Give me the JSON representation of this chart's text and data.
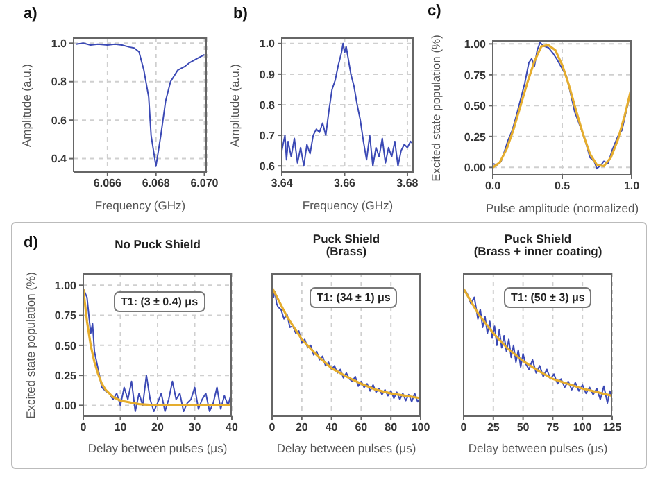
{
  "chart_data": [
    {
      "type": "line",
      "xlabel": "Frequency (GHz)",
      "ylabel": "Amplitude (a.u.)",
      "annotations": [
        "a)"
      ],
      "xlim": [
        6.0646,
        6.0701
      ],
      "xticks": [
        6.066,
        6.068,
        {
          "value": 6.07,
          "label": "6.070"
        }
      ],
      "ylim": [
        0.33,
        1.03
      ],
      "yticks": [
        0.4,
        0.6,
        0.8,
        {
          "value": 1,
          "label": "1.0"
        }
      ],
      "grid": true,
      "series": [
        {
          "color": "#3b49b5",
          "x": [
            6.0647,
            6.065,
            6.0653,
            6.0656,
            6.066,
            6.0663,
            6.0666,
            6.0669,
            6.0671,
            6.0673,
            6.0675,
            6.0677,
            6.0678,
            6.068,
            6.0682,
            6.0684,
            6.0686,
            6.0689,
            6.0692,
            6.0694,
            6.0697,
            6.07
          ],
          "values": [
            0.995,
            1.0,
            0.99,
            0.995,
            0.99,
            0.995,
            0.99,
            0.98,
            0.975,
            0.955,
            0.86,
            0.72,
            0.52,
            0.36,
            0.52,
            0.7,
            0.8,
            0.86,
            0.88,
            0.9,
            0.92,
            0.94
          ]
        }
      ]
    },
    {
      "type": "line",
      "xlabel": "Frequency (GHz)",
      "ylabel": "Amplitude (a.u.)",
      "annotations": [
        "b)"
      ],
      "xlim": [
        3.64,
        3.682
      ],
      "xticks": [
        3.64,
        3.66,
        3.68
      ],
      "ylim": [
        0.58,
        1.02
      ],
      "yticks": [
        0.6,
        0.7,
        0.8,
        0.9,
        {
          "value": 1,
          "label": "1.0"
        }
      ],
      "grid": true,
      "series": [
        {
          "color": "#3b49b5",
          "x": [
            3.64,
            3.641,
            3.6415,
            3.642,
            3.643,
            3.644,
            3.645,
            3.646,
            3.647,
            3.648,
            3.649,
            3.65,
            3.651,
            3.652,
            3.653,
            3.654,
            3.655,
            3.656,
            3.657,
            3.658,
            3.659,
            3.6595,
            3.66,
            3.6605,
            3.661,
            3.662,
            3.663,
            3.664,
            3.665,
            3.666,
            3.667,
            3.668,
            3.669,
            3.67,
            3.671,
            3.672,
            3.673,
            3.674,
            3.675,
            3.676,
            3.677,
            3.678,
            3.679,
            3.68,
            3.681,
            3.682
          ],
          "values": [
            0.65,
            0.7,
            0.62,
            0.68,
            0.63,
            0.69,
            0.61,
            0.66,
            0.6,
            0.67,
            0.64,
            0.7,
            0.72,
            0.71,
            0.74,
            0.7,
            0.78,
            0.85,
            0.88,
            0.93,
            0.97,
            1.0,
            0.97,
            0.99,
            0.96,
            0.9,
            0.86,
            0.8,
            0.75,
            0.68,
            0.62,
            0.7,
            0.6,
            0.66,
            0.63,
            0.69,
            0.61,
            0.66,
            0.63,
            0.68,
            0.6,
            0.65,
            0.67,
            0.66,
            0.68,
            0.67
          ]
        }
      ]
    },
    {
      "type": "line",
      "xlabel": "Pulse amplitude (normalized)",
      "ylabel": "Excited state population (%)",
      "annotations": [
        "c)"
      ],
      "xlim": [
        0,
        1
      ],
      "xticks": [
        {
          "value": 0,
          "label": "0.0"
        },
        0.5,
        {
          "value": 1,
          "label": "1.0"
        }
      ],
      "ylim": [
        -0.06,
        1.03
      ],
      "yticks": [
        {
          "value": 0,
          "label": "0.00"
        },
        0.25,
        {
          "value": 0.5,
          "label": "0.50"
        },
        0.75,
        {
          "value": 1,
          "label": "1.00"
        }
      ],
      "grid": true,
      "series": [
        {
          "color": "#3b49b5",
          "x": [
            0,
            0.03,
            0.06,
            0.09,
            0.11,
            0.14,
            0.17,
            0.2,
            0.23,
            0.26,
            0.28,
            0.3,
            0.32,
            0.34,
            0.37,
            0.4,
            0.43,
            0.46,
            0.5,
            0.53,
            0.56,
            0.59,
            0.62,
            0.64,
            0.67,
            0.7,
            0.73,
            0.75,
            0.78,
            0.8,
            0.83,
            0.86,
            0.9,
            0.93,
            0.96,
            1.0
          ],
          "values": [
            0.03,
            0.02,
            0.05,
            0.15,
            0.22,
            0.3,
            0.42,
            0.55,
            0.68,
            0.85,
            0.88,
            0.82,
            0.95,
            1.01,
            0.98,
            0.97,
            0.93,
            0.88,
            0.8,
            0.74,
            0.6,
            0.45,
            0.36,
            0.3,
            0.2,
            0.08,
            0.05,
            -0.01,
            0.02,
            0.05,
            0.03,
            0.14,
            0.25,
            0.3,
            0.45,
            0.65
          ]
        },
        {
          "color": "#e5ad2e",
          "x": [
            0,
            0.05,
            0.1,
            0.15,
            0.2,
            0.25,
            0.3,
            0.35,
            0.4,
            0.45,
            0.5,
            0.55,
            0.6,
            0.65,
            0.7,
            0.75,
            0.8,
            0.85,
            0.9,
            0.95,
            1.0
          ],
          "values": [
            0,
            0.04,
            0.15,
            0.31,
            0.5,
            0.69,
            0.86,
            0.98,
            0.99,
            0.95,
            0.83,
            0.66,
            0.46,
            0.27,
            0.11,
            0.02,
            0.01,
            0.08,
            0.22,
            0.42,
            0.65
          ]
        }
      ]
    },
    {
      "type": "line",
      "title": "No Puck Shield",
      "xlabel": "Delay between pulses (μs)",
      "ylabel": "Excited state population (%)",
      "annotations": [
        "d)",
        "T1: (3 ± 0.4) μs"
      ],
      "xlim": [
        0,
        40
      ],
      "xticks": [
        0,
        10,
        20,
        30,
        40
      ],
      "ylim": [
        -0.09,
        1.1
      ],
      "yticks": [
        {
          "value": 0,
          "label": "0.00"
        },
        0.25,
        {
          "value": 0.5,
          "label": "0.50"
        },
        0.75,
        {
          "value": 1,
          "label": "1.00"
        }
      ],
      "grid": true,
      "series": [
        {
          "color": "#3b49b5",
          "x": [
            0,
            1,
            2,
            2.5,
            3,
            4,
            5,
            6,
            7,
            8,
            9,
            10,
            11,
            12,
            13,
            14,
            15,
            16,
            17,
            18,
            19,
            20,
            21,
            22,
            23,
            24,
            25,
            26,
            27,
            28,
            29,
            30,
            31,
            32,
            33,
            34,
            35,
            36,
            37,
            38,
            39,
            40
          ],
          "values": [
            0.97,
            0.9,
            0.6,
            0.68,
            0.45,
            0.3,
            0.15,
            0.12,
            0.1,
            0.05,
            0.1,
            0,
            0.15,
            0.05,
            0.2,
            -0.05,
            0.1,
            0,
            0.25,
            0.05,
            -0.05,
            0.02,
            0.1,
            -0.05,
            0.05,
            0.2,
            0.05,
            0.1,
            -0.05,
            0.02,
            0.05,
            0.15,
            -0.03,
            0.05,
            0.1,
            -0.05,
            0.02,
            0.15,
            -0.03,
            0.08,
            0,
            0.12
          ]
        },
        {
          "color": "#e5ad2e",
          "x": [
            0,
            1,
            2,
            3,
            4,
            5,
            6,
            8,
            10,
            15,
            20,
            30,
            40
          ],
          "values": [
            0.97,
            0.7,
            0.5,
            0.36,
            0.26,
            0.18,
            0.13,
            0.07,
            0.04,
            0.01,
            0,
            0,
            0
          ]
        }
      ]
    },
    {
      "type": "line",
      "title": "Puck Shield\n(Brass)",
      "xlabel": "Delay between pulses (μs)",
      "xlim": [
        0,
        100
      ],
      "xticks": [
        0,
        20,
        40,
        60,
        80,
        100
      ],
      "ylim": [
        -0.09,
        1.1
      ],
      "yticks": [
        0,
        0.25,
        0.5,
        0.75,
        1
      ],
      "tick_labels": "x",
      "grid": true,
      "annotations": [
        "T1: (34 ± 1) μs"
      ],
      "series": [
        {
          "color": "#3b49b5",
          "x": [
            0,
            1,
            2,
            3,
            4,
            6,
            8,
            10,
            12,
            14,
            16,
            18,
            20,
            22,
            24,
            26,
            28,
            30,
            32,
            34,
            36,
            38,
            40,
            42,
            44,
            46,
            48,
            50,
            52,
            54,
            56,
            58,
            60,
            62,
            64,
            66,
            68,
            70,
            72,
            74,
            76,
            78,
            80,
            82,
            84,
            86,
            88,
            90,
            92,
            94,
            96,
            98,
            100
          ],
          "values": [
            1.0,
            0.9,
            0.95,
            0.85,
            0.82,
            0.8,
            0.72,
            0.76,
            0.65,
            0.66,
            0.6,
            0.62,
            0.52,
            0.55,
            0.48,
            0.5,
            0.42,
            0.45,
            0.38,
            0.41,
            0.33,
            0.36,
            0.3,
            0.33,
            0.27,
            0.3,
            0.23,
            0.27,
            0.22,
            0.2,
            0.24,
            0.16,
            0.2,
            0.15,
            0.18,
            0.12,
            0.17,
            0.11,
            0.14,
            0.09,
            0.13,
            0.08,
            0.12,
            0.06,
            0.11,
            0.05,
            0.1,
            0.04,
            0.09,
            0.03,
            0.1,
            0.03,
            0.07
          ]
        },
        {
          "color": "#e5ad2e",
          "x": [
            0,
            10,
            20,
            30,
            40,
            50,
            60,
            70,
            80,
            90,
            100
          ],
          "values": [
            0.98,
            0.74,
            0.55,
            0.42,
            0.31,
            0.24,
            0.18,
            0.13,
            0.1,
            0.08,
            0.06
          ]
        }
      ]
    },
    {
      "type": "line",
      "title": "Puck Shield\n(Brass + inner coating)",
      "xlabel": "Delay between pulses (μs)",
      "xlim": [
        0,
        125
      ],
      "xticks": [
        0,
        25,
        50,
        75,
        100,
        125
      ],
      "ylim": [
        -0.09,
        1.1
      ],
      "yticks": [
        0,
        0.25,
        0.5,
        0.75,
        1
      ],
      "tick_labels": "x",
      "grid": true,
      "annotations": [
        "T1: (50 ± 3) μs"
      ],
      "series": [
        {
          "color": "#3b49b5",
          "x": [
            0,
            3,
            6,
            9,
            12,
            14,
            16,
            18,
            20,
            22,
            24,
            26,
            28,
            30,
            32,
            34,
            36,
            38,
            40,
            42,
            44,
            46,
            48,
            50,
            52,
            55,
            58,
            61,
            64,
            67,
            70,
            73,
            76,
            79,
            82,
            85,
            88,
            91,
            94,
            97,
            100,
            103,
            106,
            109,
            112,
            115,
            118,
            121,
            123,
            125
          ],
          "values": [
            0.97,
            0.93,
            0.85,
            0.9,
            0.72,
            0.8,
            0.65,
            0.74,
            0.6,
            0.7,
            0.56,
            0.66,
            0.5,
            0.63,
            0.48,
            0.58,
            0.45,
            0.55,
            0.4,
            0.5,
            0.36,
            0.46,
            0.32,
            0.43,
            0.35,
            0.3,
            0.38,
            0.27,
            0.33,
            0.24,
            0.3,
            0.22,
            0.26,
            0.18,
            0.22,
            0.15,
            0.2,
            0.13,
            0.19,
            0.12,
            0.17,
            0.1,
            0.15,
            0.09,
            0.14,
            0.05,
            0.16,
            0.02,
            0.12,
            0.06
          ]
        },
        {
          "color": "#e5ad2e",
          "x": [
            0,
            12.5,
            25,
            37.5,
            50,
            62.5,
            75,
            87.5,
            100,
            112.5,
            125
          ],
          "values": [
            0.97,
            0.76,
            0.6,
            0.47,
            0.37,
            0.29,
            0.22,
            0.18,
            0.14,
            0.11,
            0.08
          ]
        }
      ]
    }
  ]
}
